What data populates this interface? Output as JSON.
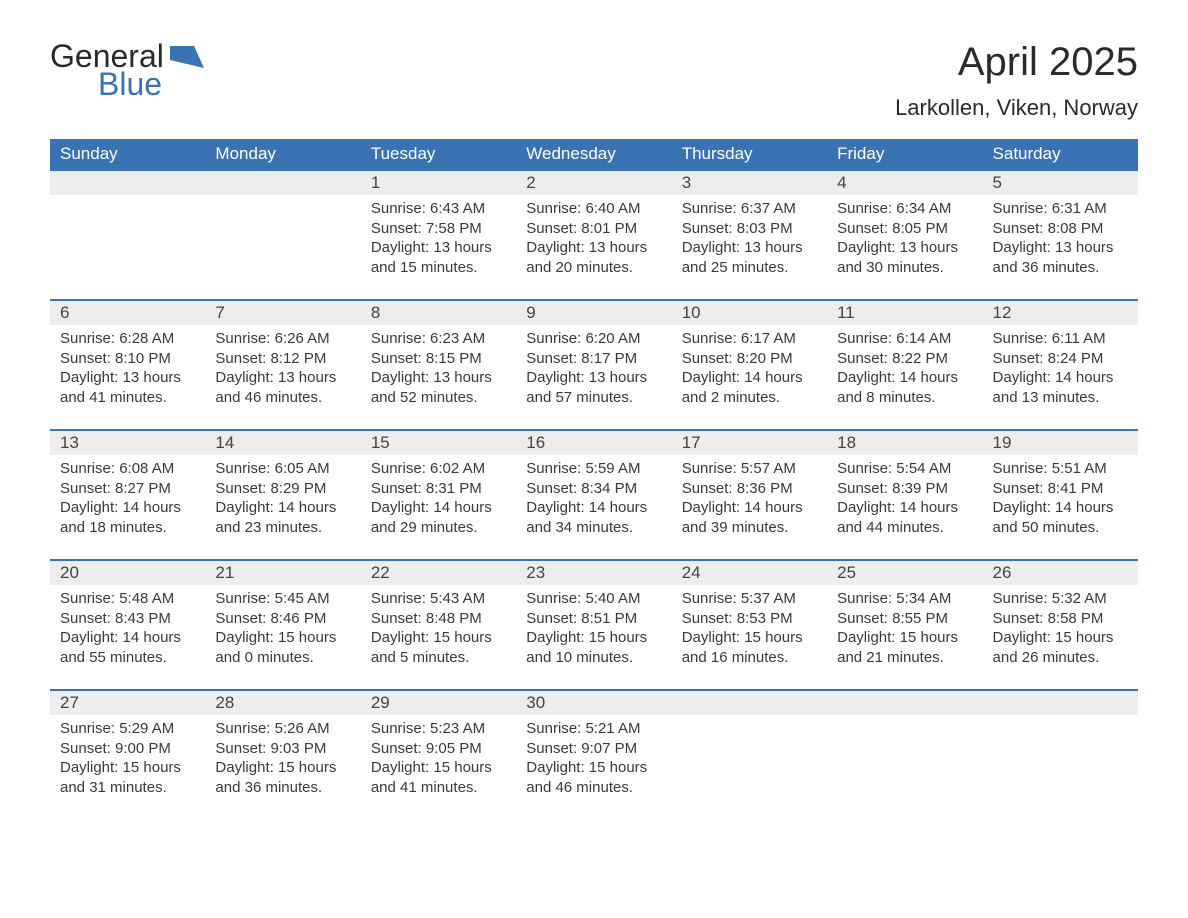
{
  "logo": {
    "word1": "General",
    "word2": "Blue",
    "shape_color": "#3a73b4",
    "text_color1": "#2a2a2a",
    "text_color2": "#3a73b4"
  },
  "title": "April 2025",
  "location": "Larkollen, Viken, Norway",
  "colors": {
    "header_bg": "#3a73b4",
    "header_text": "#ffffff",
    "daynum_bg": "#ededed",
    "row_border": "#3a73b4",
    "body_text": "#3a3a3a",
    "page_bg": "#ffffff"
  },
  "typography": {
    "title_fontsize_pt": 30,
    "location_fontsize_pt": 17,
    "header_fontsize_pt": 13,
    "daynum_fontsize_pt": 13,
    "cell_fontsize_pt": 11,
    "font_family": "Segoe UI / Arial"
  },
  "layout": {
    "columns": 7,
    "week_rows": 5,
    "aspect_w": 1188,
    "aspect_h": 918
  },
  "weekdays": [
    "Sunday",
    "Monday",
    "Tuesday",
    "Wednesday",
    "Thursday",
    "Friday",
    "Saturday"
  ],
  "weeks": [
    [
      null,
      null,
      {
        "day": "1",
        "sunrise": "Sunrise: 6:43 AM",
        "sunset": "Sunset: 7:58 PM",
        "dl1": "Daylight: 13 hours",
        "dl2": "and 15 minutes."
      },
      {
        "day": "2",
        "sunrise": "Sunrise: 6:40 AM",
        "sunset": "Sunset: 8:01 PM",
        "dl1": "Daylight: 13 hours",
        "dl2": "and 20 minutes."
      },
      {
        "day": "3",
        "sunrise": "Sunrise: 6:37 AM",
        "sunset": "Sunset: 8:03 PM",
        "dl1": "Daylight: 13 hours",
        "dl2": "and 25 minutes."
      },
      {
        "day": "4",
        "sunrise": "Sunrise: 6:34 AM",
        "sunset": "Sunset: 8:05 PM",
        "dl1": "Daylight: 13 hours",
        "dl2": "and 30 minutes."
      },
      {
        "day": "5",
        "sunrise": "Sunrise: 6:31 AM",
        "sunset": "Sunset: 8:08 PM",
        "dl1": "Daylight: 13 hours",
        "dl2": "and 36 minutes."
      }
    ],
    [
      {
        "day": "6",
        "sunrise": "Sunrise: 6:28 AM",
        "sunset": "Sunset: 8:10 PM",
        "dl1": "Daylight: 13 hours",
        "dl2": "and 41 minutes."
      },
      {
        "day": "7",
        "sunrise": "Sunrise: 6:26 AM",
        "sunset": "Sunset: 8:12 PM",
        "dl1": "Daylight: 13 hours",
        "dl2": "and 46 minutes."
      },
      {
        "day": "8",
        "sunrise": "Sunrise: 6:23 AM",
        "sunset": "Sunset: 8:15 PM",
        "dl1": "Daylight: 13 hours",
        "dl2": "and 52 minutes."
      },
      {
        "day": "9",
        "sunrise": "Sunrise: 6:20 AM",
        "sunset": "Sunset: 8:17 PM",
        "dl1": "Daylight: 13 hours",
        "dl2": "and 57 minutes."
      },
      {
        "day": "10",
        "sunrise": "Sunrise: 6:17 AM",
        "sunset": "Sunset: 8:20 PM",
        "dl1": "Daylight: 14 hours",
        "dl2": "and 2 minutes."
      },
      {
        "day": "11",
        "sunrise": "Sunrise: 6:14 AM",
        "sunset": "Sunset: 8:22 PM",
        "dl1": "Daylight: 14 hours",
        "dl2": "and 8 minutes."
      },
      {
        "day": "12",
        "sunrise": "Sunrise: 6:11 AM",
        "sunset": "Sunset: 8:24 PM",
        "dl1": "Daylight: 14 hours",
        "dl2": "and 13 minutes."
      }
    ],
    [
      {
        "day": "13",
        "sunrise": "Sunrise: 6:08 AM",
        "sunset": "Sunset: 8:27 PM",
        "dl1": "Daylight: 14 hours",
        "dl2": "and 18 minutes."
      },
      {
        "day": "14",
        "sunrise": "Sunrise: 6:05 AM",
        "sunset": "Sunset: 8:29 PM",
        "dl1": "Daylight: 14 hours",
        "dl2": "and 23 minutes."
      },
      {
        "day": "15",
        "sunrise": "Sunrise: 6:02 AM",
        "sunset": "Sunset: 8:31 PM",
        "dl1": "Daylight: 14 hours",
        "dl2": "and 29 minutes."
      },
      {
        "day": "16",
        "sunrise": "Sunrise: 5:59 AM",
        "sunset": "Sunset: 8:34 PM",
        "dl1": "Daylight: 14 hours",
        "dl2": "and 34 minutes."
      },
      {
        "day": "17",
        "sunrise": "Sunrise: 5:57 AM",
        "sunset": "Sunset: 8:36 PM",
        "dl1": "Daylight: 14 hours",
        "dl2": "and 39 minutes."
      },
      {
        "day": "18",
        "sunrise": "Sunrise: 5:54 AM",
        "sunset": "Sunset: 8:39 PM",
        "dl1": "Daylight: 14 hours",
        "dl2": "and 44 minutes."
      },
      {
        "day": "19",
        "sunrise": "Sunrise: 5:51 AM",
        "sunset": "Sunset: 8:41 PM",
        "dl1": "Daylight: 14 hours",
        "dl2": "and 50 minutes."
      }
    ],
    [
      {
        "day": "20",
        "sunrise": "Sunrise: 5:48 AM",
        "sunset": "Sunset: 8:43 PM",
        "dl1": "Daylight: 14 hours",
        "dl2": "and 55 minutes."
      },
      {
        "day": "21",
        "sunrise": "Sunrise: 5:45 AM",
        "sunset": "Sunset: 8:46 PM",
        "dl1": "Daylight: 15 hours",
        "dl2": "and 0 minutes."
      },
      {
        "day": "22",
        "sunrise": "Sunrise: 5:43 AM",
        "sunset": "Sunset: 8:48 PM",
        "dl1": "Daylight: 15 hours",
        "dl2": "and 5 minutes."
      },
      {
        "day": "23",
        "sunrise": "Sunrise: 5:40 AM",
        "sunset": "Sunset: 8:51 PM",
        "dl1": "Daylight: 15 hours",
        "dl2": "and 10 minutes."
      },
      {
        "day": "24",
        "sunrise": "Sunrise: 5:37 AM",
        "sunset": "Sunset: 8:53 PM",
        "dl1": "Daylight: 15 hours",
        "dl2": "and 16 minutes."
      },
      {
        "day": "25",
        "sunrise": "Sunrise: 5:34 AM",
        "sunset": "Sunset: 8:55 PM",
        "dl1": "Daylight: 15 hours",
        "dl2": "and 21 minutes."
      },
      {
        "day": "26",
        "sunrise": "Sunrise: 5:32 AM",
        "sunset": "Sunset: 8:58 PM",
        "dl1": "Daylight: 15 hours",
        "dl2": "and 26 minutes."
      }
    ],
    [
      {
        "day": "27",
        "sunrise": "Sunrise: 5:29 AM",
        "sunset": "Sunset: 9:00 PM",
        "dl1": "Daylight: 15 hours",
        "dl2": "and 31 minutes."
      },
      {
        "day": "28",
        "sunrise": "Sunrise: 5:26 AM",
        "sunset": "Sunset: 9:03 PM",
        "dl1": "Daylight: 15 hours",
        "dl2": "and 36 minutes."
      },
      {
        "day": "29",
        "sunrise": "Sunrise: 5:23 AM",
        "sunset": "Sunset: 9:05 PM",
        "dl1": "Daylight: 15 hours",
        "dl2": "and 41 minutes."
      },
      {
        "day": "30",
        "sunrise": "Sunrise: 5:21 AM",
        "sunset": "Sunset: 9:07 PM",
        "dl1": "Daylight: 15 hours",
        "dl2": "and 46 minutes."
      },
      null,
      null,
      null
    ]
  ]
}
